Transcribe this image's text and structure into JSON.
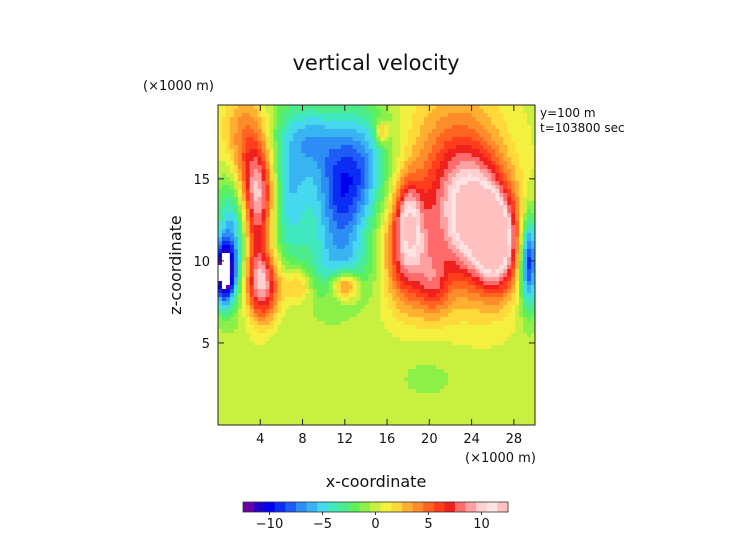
{
  "chart_data": {
    "type": "heatmap",
    "title": "vertical velocity",
    "xlabel": "x-coordinate",
    "ylabel": "z-coordinate",
    "x_unit_label": "(×1000 m)",
    "y_unit_label": "(×1000 m)",
    "annotations": [
      "y=100 m",
      "t=103800 sec"
    ],
    "xlim": [
      0,
      30
    ],
    "ylim": [
      0,
      19.5
    ],
    "x_ticks": [
      4,
      8,
      12,
      16,
      20,
      24,
      28
    ],
    "y_ticks": [
      5,
      10,
      15
    ],
    "colorbar": {
      "range": [
        -12.5,
        12.5
      ],
      "ticks": [
        -10,
        -5,
        0,
        5,
        10
      ],
      "colors": [
        "#6a00a8",
        "#2200cc",
        "#0000ee",
        "#0a2cf5",
        "#1f5cf7",
        "#2e8cf5",
        "#39b4f2",
        "#45d8ee",
        "#40e8c0",
        "#4cec8c",
        "#5ef05a",
        "#8cf048",
        "#c8f040",
        "#f4f040",
        "#ffd83a",
        "#ffb030",
        "#ff8c2a",
        "#ff6420",
        "#ff3c1c",
        "#f0201c",
        "#ff6a6a",
        "#ffa0a0",
        "#ffd0d0",
        "#ffe4e4",
        "#ffc0c0"
      ]
    },
    "field_features": [
      {
        "x": 0.6,
        "z": 9.2,
        "sx": 0.7,
        "sz": 1.3,
        "w": -13
      },
      {
        "x": 1.5,
        "z": 12.5,
        "sx": 1.2,
        "sz": 3,
        "w": -7
      },
      {
        "x": 2.5,
        "z": 16.5,
        "sx": 1.6,
        "sz": 2.5,
        "w": 6
      },
      {
        "x": 4.0,
        "z": 14.0,
        "sx": 1.2,
        "sz": 2,
        "w": 8
      },
      {
        "x": 4.3,
        "z": 8.5,
        "sx": 1.1,
        "sz": 1.5,
        "w": 9
      },
      {
        "x": 3.5,
        "z": 11,
        "sx": 0.8,
        "sz": 2.2,
        "w": 4
      },
      {
        "x": 6.5,
        "z": 14.5,
        "sx": 1.6,
        "sz": 3.5,
        "w": -6
      },
      {
        "x": 9,
        "z": 17.5,
        "sx": 1.5,
        "sz": 1.5,
        "w": -4
      },
      {
        "x": 11.5,
        "z": 14,
        "sx": 1.8,
        "sz": 3,
        "w": -8
      },
      {
        "x": 14,
        "z": 16,
        "sx": 1.8,
        "sz": 2.5,
        "w": -5
      },
      {
        "x": 11.5,
        "z": 9.5,
        "sx": 2.5,
        "sz": 1.5,
        "w": -3
      },
      {
        "x": 12,
        "z": 8.5,
        "sx": 0.9,
        "sz": 0.6,
        "w": 7
      },
      {
        "x": 7.5,
        "z": 8.5,
        "sx": 0.9,
        "sz": 0.8,
        "w": 4
      },
      {
        "x": 15.5,
        "z": 17.8,
        "sx": 0.4,
        "sz": 0.5,
        "w": 5
      },
      {
        "x": 18,
        "z": 10.5,
        "sx": 1.5,
        "sz": 2.2,
        "w": 8
      },
      {
        "x": 22.5,
        "z": 14,
        "sx": 3,
        "sz": 4,
        "w": 7
      },
      {
        "x": 24.5,
        "z": 12.5,
        "sx": 2,
        "sz": 2.5,
        "w": 8
      },
      {
        "x": 26.5,
        "z": 11,
        "sx": 1.3,
        "sz": 2,
        "w": 10
      },
      {
        "x": 20.5,
        "z": 8.5,
        "sx": 1,
        "sz": 1.3,
        "w": 4
      },
      {
        "x": 29.4,
        "z": 10,
        "sx": 0.6,
        "sz": 2,
        "w": -10
      },
      {
        "x": 18,
        "z": 13,
        "sx": 0.8,
        "sz": 1.5,
        "w": 5
      },
      {
        "x": 20,
        "z": 3,
        "sx": 3,
        "sz": 1.5,
        "w": -1
      },
      {
        "x": 8,
        "z": 5,
        "sx": 3,
        "sz": 1.2,
        "w": -0.5
      }
    ]
  }
}
